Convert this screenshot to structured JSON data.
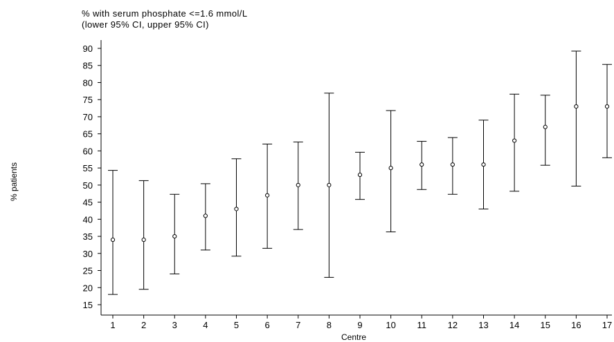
{
  "chart_data": {
    "type": "scatter",
    "title": "% with serum phosphate <=1.6 mmol/L",
    "subtitle": "(lower 95% CI, upper 95% CI)",
    "xlabel": "Centre",
    "ylabel": "% patients",
    "ylim": [
      13,
      94
    ],
    "yticks": [
      15,
      20,
      25,
      30,
      35,
      40,
      45,
      50,
      55,
      60,
      65,
      70,
      75,
      80,
      85,
      90
    ],
    "grid": false,
    "series": [
      {
        "x": [
          1,
          2,
          3,
          4,
          5,
          6,
          7,
          8,
          9,
          10,
          11,
          12,
          13,
          14,
          15,
          16,
          17
        ],
        "values": [
          34,
          34,
          35,
          41,
          43,
          47,
          50,
          50,
          53,
          55,
          56,
          56,
          56,
          63,
          67,
          73,
          73
        ],
        "lower_ci": [
          18,
          19.5,
          24,
          31,
          29.2,
          31.5,
          37,
          23,
          45.8,
          36.3,
          48.7,
          47.3,
          43,
          48.2,
          55.8,
          49.7,
          58
        ],
        "upper_ci": [
          54.3,
          51.3,
          47.3,
          50.4,
          57.7,
          62,
          62.6,
          76.9,
          59.6,
          71.8,
          62.8,
          63.9,
          69,
          76.6,
          76.3,
          89.2,
          85.3
        ]
      }
    ]
  }
}
